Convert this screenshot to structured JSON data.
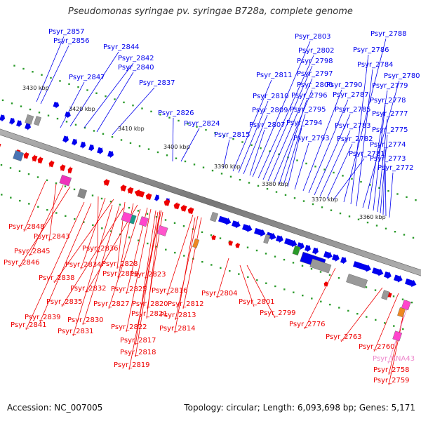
{
  "title": "Pseudomonas syringae pv. syringae B728a, complete genome",
  "footer": {
    "accession": "Accession: NC_007005",
    "topology": "Topology: circular; Length: 6,093,698 bp; Genes: 5,171"
  },
  "colors": {
    "forward_cds": "#0000ee",
    "reverse_cds": "#ee0000",
    "rna_label": "#ee88cc",
    "backbone": "#808080",
    "tick": "#2a9a2a",
    "grey_feature": "#999999"
  },
  "kbp_ticks": [
    "3430 kbp",
    "3420 kbp",
    "3410 kbp",
    "3400 kbp",
    "3390 kbp",
    "3380 kbp",
    "3370 kbp",
    "3360 kbp"
  ],
  "forward_labels": [
    "Psyr_2857",
    "Psyr_2856",
    "Psyr_2844",
    "Psyr_2842",
    "Psyr_2840",
    "Psyr_2847",
    "Psyr_2837",
    "Psyr_2826",
    "Psyr_2824",
    "Psyr_2815",
    "Psyr_2811",
    "Psyr_2810",
    "Psyr_2809",
    "Psyr_2807",
    "Psyr_2803",
    "Psyr_2802",
    "Psyr_2798",
    "Psyr_2797",
    "Psyr_2800",
    "Psyr_2796",
    "Psyr_2795",
    "Psyr_2794",
    "Psyr_2793",
    "Psyr_2790",
    "Psyr_2787",
    "Psyr_2785",
    "Psyr_2783",
    "Psyr_2782",
    "Psyr_2781",
    "Psyr_2788",
    "Psyr_2786",
    "Psyr_2784",
    "Psyr_2780",
    "Psyr_2779",
    "Psyr_2778",
    "Psyr_2777",
    "Psyr_2775",
    "Psyr_2774",
    "Psyr_2773",
    "Psyr_2772"
  ],
  "reverse_labels": [
    "Psyr_2848",
    "Psyr_2843",
    "Psyr_2845",
    "Psyr_2846",
    "Psyr_2836",
    "Psyr_2834",
    "Psyr_2838",
    "Psyr_2828",
    "Psyr_2829",
    "Psyr_2832",
    "Psyr_2823",
    "Psyr_2835",
    "Psyr_2825",
    "Psyr_2816",
    "Psyr_2827",
    "Psyr_2820",
    "Psyr_2812",
    "Psyr_2839",
    "Psyr_2830",
    "Psyr_2821",
    "Psyr_2813",
    "Psyr_2841",
    "Psyr_2831",
    "Psyr_2822",
    "Psyr_2814",
    "Psyr_2817",
    "Psyr_2818",
    "Psyr_2819",
    "Psyr_2804",
    "Psyr_2801",
    "Psyr_2799",
    "Psyr_2776",
    "Psyr_2763",
    "Psyr_2760",
    "Psyr_2758",
    "Psyr_2759"
  ],
  "rna_labels": [
    "Psyr_RNA43"
  ]
}
